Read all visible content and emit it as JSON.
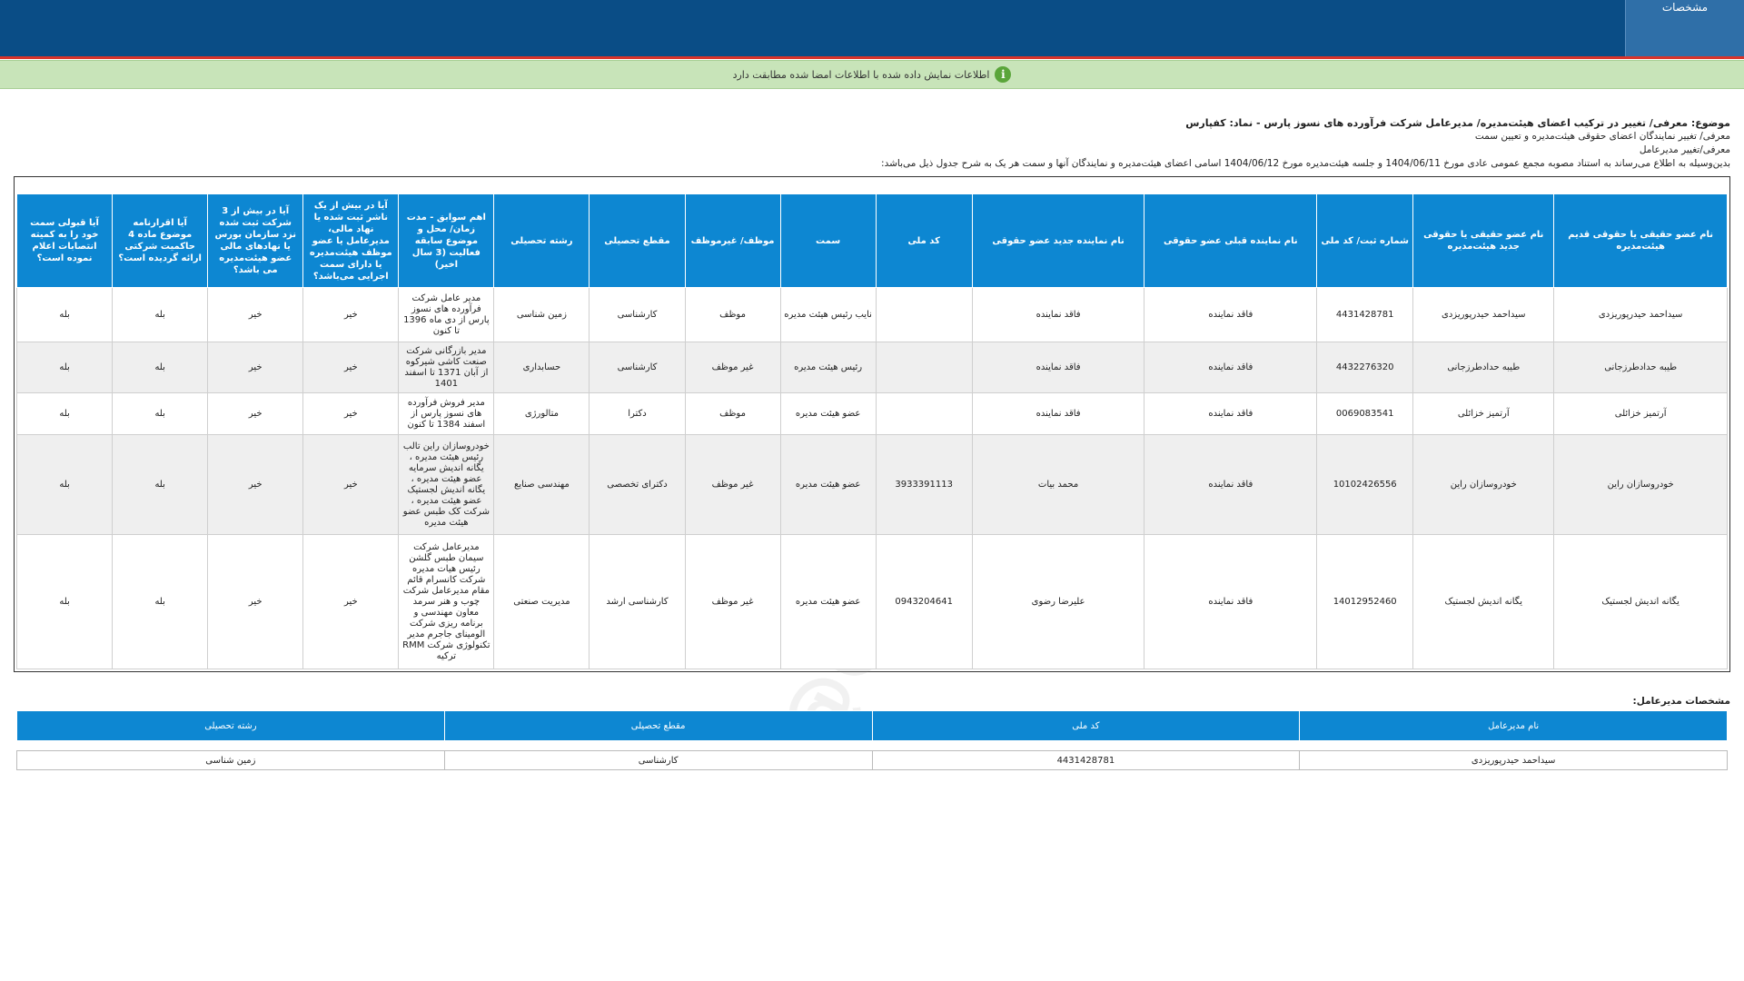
{
  "header": {
    "tab_label": "مشخصات"
  },
  "notice": {
    "icon": "info-icon",
    "text": "اطلاعات نمایش داده شده با اطلاعات امضا شده مطابقت دارد"
  },
  "subject": {
    "title": "موضوع: معرفی/ تغییر در ترکیب اعضای هیئت‌مدیره/ مدیرعامل شرکت فرآورده های نسوز پارس - نماد: کفپارس",
    "line1": "معرفی/ تغییر نمایندگان اعضای حقوقی هیئت‌مدیره و تعیین سمت",
    "line2": "معرفی/تغییر مدیرعامل",
    "line3": "بدین‌وسیله به اطلاع می‌رساند به استناد مصوبه مجمع عمومی عادی مورخ 1404/06/11 و جلسه هیئت‌مدیره مورخ 1404/06/12 اسامی اعضای هیئت‌مدیره و نمایندگان آنها و سمت هر یک به شرح جدول ذیل می‌باشد:"
  },
  "board_table": {
    "headers": [
      "نام عضو حقیقی یا حقوقی قدیم هیئت‌مدیره",
      "نام عضو حقیقی یا حقوقی جدید هیئت‌مدیره",
      "شماره ثبت/ کد ملی",
      "نام نماینده قبلی عضو حقوقی",
      "نام نماینده جدید عضو حقوقی",
      "کد ملی",
      "سمت",
      "موظف/ غیرموظف",
      "مقطع تحصیلی",
      "رشته تحصیلی",
      "اهم سوابق - مدت زمان/ محل و موضوع سابقه فعالیت (3 سال اخیر)",
      "آیا در بیش از یک ناشر ثبت شده یا نهاد مالی، مدیرعامل یا عضو موظف هیئت‌مدیره یا دارای سمت اجرایی می‌باشد؟",
      "آیا در بیش از 3 شرکت ثبت شده نزد سازمان بورس یا نهادهای مالی عضو هیئت‌مدیره می باشد؟",
      "آیا اقرارنامه موضوع ماده 4 حاکمیت شرکتی ارائه گردیده است؟",
      "آیا قبولی سمت خود را به کمیته انتصابات اعلام نموده است؟"
    ],
    "rows": [
      [
        "سیداحمد حیدرپوریزدی",
        "سیداحمد حیدرپوریزدی",
        "4431428781",
        "فاقد نماینده",
        "فاقد نماینده",
        "",
        "نایب رئیس هیئت مدیره",
        "موظف",
        "کارشناسی",
        "زمین شناسی",
        "مدیر عامل شرکت فرآورده های نسوز پارس از دی ماه 1396 تا کنون",
        "خیر",
        "خیر",
        "بله",
        "بله"
      ],
      [
        "طیبه حدادطرزجانی",
        "طیبه حدادطرزجانی",
        "4432276320",
        "فاقد نماینده",
        "فاقد نماینده",
        "",
        "رئیس هیئت مدیره",
        "غیر موظف",
        "کارشناسی",
        "حسابداری",
        "مدیر بازرگانی شرکت صنعت کاشی شیرکوه از آبان 1371 تا اسفند 1401",
        "خیر",
        "خیر",
        "بله",
        "بله"
      ],
      [
        "آرتمیز خزائلی",
        "آرتمیز خزائلی",
        "0069083541",
        "فاقد نماینده",
        "فاقد نماینده",
        "",
        "عضو هیئت مدیره",
        "موظف",
        "دکترا",
        "متالورژی",
        "مدیر فروش فرآورده های نسوز پارس از اسفند 1384 تا کنون",
        "خیر",
        "خیر",
        "بله",
        "بله"
      ],
      [
        "خودروسازان راین",
        "خودروسازان راین",
        "10102426556",
        "فاقد نماینده",
        "محمد بیات",
        "3933391113",
        "عضو هیئت مدیره",
        "غیر موظف",
        "دکترای تخصصی",
        "مهندسی صنایع",
        "خودروسازان راین تالب رئیس هیئت مدیره ، یگانه اندیش سرمایه عضو هیئت مدیره ، یگانه اندیش لجستیک عضو هیئت مدیره ، شرکت کک طبس عضو هیئت مدیره",
        "خیر",
        "خیر",
        "بله",
        "بله"
      ],
      [
        "یگانه اندیش لجستیک",
        "یگانه اندیش لجستیک",
        "14012952460",
        "فاقد نماینده",
        "علیرضا رضوی",
        "0943204641",
        "عضو هیئت مدیره",
        "غیر موظف",
        "کارشناسی ارشد",
        "مدیریت صنعتی",
        "مدیرعامل شرکت سیمان طبس گلشن رئیس هیات مدیره شرکت کانسرام قائم مقام مدیرعامل شرکت چوب و هنر سرمد معاون مهندسی و برنامه ریزی شرکت الومینای جاجرم مدیر تکنولوژی شرکت RMM ترکیه",
        "خیر",
        "خیر",
        "بله",
        "بله"
      ]
    ]
  },
  "manager": {
    "title": "مشخصات مدیرعامل:",
    "headers": [
      "نام مدیرعامل",
      "کد ملی",
      "مقطع تحصیلی",
      "رشته تحصیلی"
    ],
    "values": [
      "سیداحمد حیدرپوریزدی",
      "4431428781",
      "کارشناسی",
      "زمین شناسی"
    ]
  },
  "watermark": "@Codal360_ir"
}
